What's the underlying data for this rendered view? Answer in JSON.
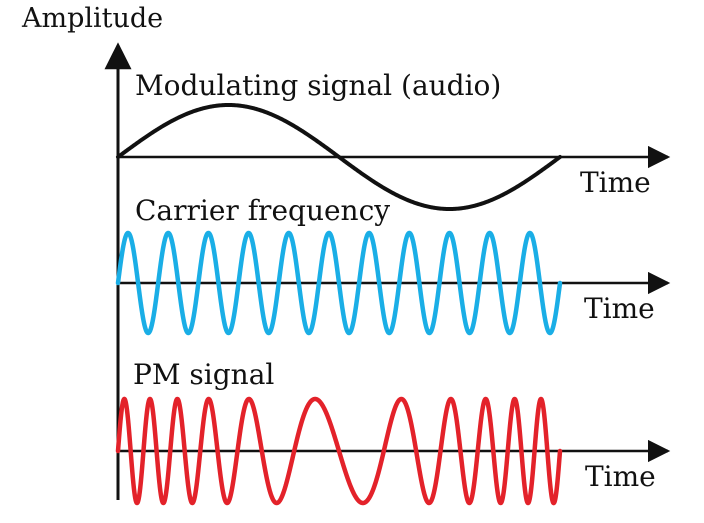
{
  "labels": {
    "amplitude": "Amplitude",
    "modulating": "Modulating signal (audio)",
    "carrier": "Carrier frequency",
    "pm": "PM signal",
    "time1": "Time",
    "time2": "Time",
    "time3": "Time"
  },
  "colors": {
    "axis": "#111111",
    "modulating": "#111111",
    "carrier": "#1aaee6",
    "pm": "#e3222a"
  },
  "signals": {
    "carrier_cycles": 11,
    "pm_cycles": 11
  }
}
